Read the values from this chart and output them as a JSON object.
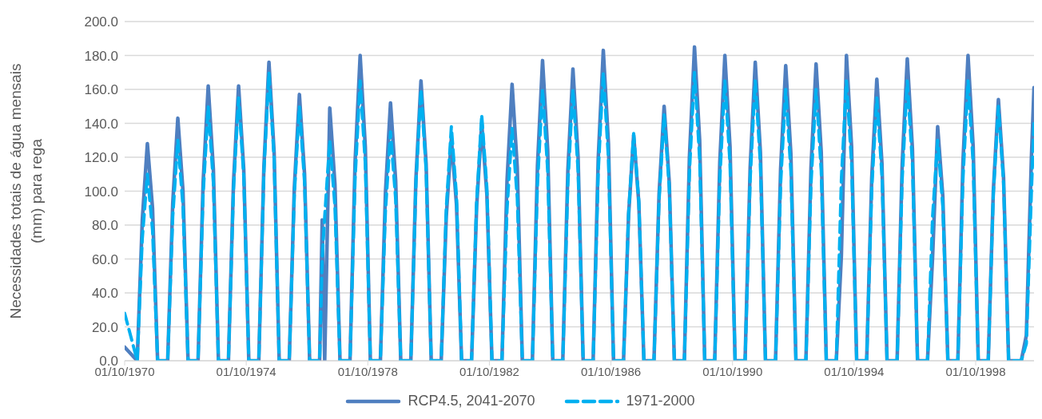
{
  "chart_data": {
    "type": "line",
    "ylabel": "Necessidades totais de água mensais (mm) para rega",
    "xlim": [
      "1970-10-01",
      "2000-09-01"
    ],
    "xticks": [
      {
        "value": "1970-10-01",
        "label": "01/10/1970"
      },
      {
        "value": "1974-10-01",
        "label": "01/10/1974"
      },
      {
        "value": "1978-10-01",
        "label": "01/10/1978"
      },
      {
        "value": "1982-10-01",
        "label": "01/10/1982"
      },
      {
        "value": "1986-10-01",
        "label": "01/10/1986"
      },
      {
        "value": "1990-10-01",
        "label": "01/10/1990"
      },
      {
        "value": "1994-10-01",
        "label": "01/10/1994"
      },
      {
        "value": "1998-10-01",
        "label": "01/10/1998"
      }
    ],
    "ylim": [
      0,
      200
    ],
    "yticks": [
      {
        "value": 0,
        "label": "0.0"
      },
      {
        "value": 20,
        "label": "20.0"
      },
      {
        "value": 40,
        "label": "40.0"
      },
      {
        "value": 60,
        "label": "60.0"
      },
      {
        "value": 80,
        "label": "80.0"
      },
      {
        "value": 100,
        "label": "100.0"
      },
      {
        "value": 120,
        "label": "120.0"
      },
      {
        "value": 140,
        "label": "140.0"
      },
      {
        "value": 160,
        "label": "160.0"
      },
      {
        "value": 180,
        "label": "180.0"
      },
      {
        "value": 200,
        "label": "200.0"
      }
    ],
    "grid": "y",
    "legend": "bottom",
    "marker": "none",
    "x": [
      "1970-10",
      "1971-03",
      "1971-05",
      "1971-07",
      "1971-09",
      "1971-11",
      "1972-03",
      "1972-05",
      "1972-07",
      "1972-09",
      "1972-11",
      "1973-03",
      "1973-05",
      "1973-07",
      "1973-09",
      "1973-11",
      "1974-03",
      "1974-05",
      "1974-07",
      "1974-09",
      "1974-11",
      "1975-03",
      "1975-05",
      "1975-07",
      "1975-09",
      "1975-11",
      "1976-03",
      "1976-05",
      "1976-07",
      "1976-09",
      "1976-11",
      "1977-03",
      "1977-04",
      "1977-05",
      "1977-07",
      "1977-09",
      "1977-11",
      "1978-03",
      "1978-05",
      "1978-07",
      "1978-09",
      "1978-11",
      "1979-03",
      "1979-05",
      "1979-07",
      "1979-09",
      "1979-11",
      "1980-03",
      "1980-05",
      "1980-07",
      "1980-09",
      "1980-11",
      "1981-03",
      "1981-05",
      "1981-07",
      "1981-09",
      "1981-11",
      "1982-03",
      "1982-05",
      "1982-07",
      "1982-09",
      "1982-11",
      "1983-03",
      "1983-05",
      "1983-07",
      "1983-09",
      "1983-11",
      "1984-03",
      "1984-05",
      "1984-07",
      "1984-09",
      "1984-11",
      "1985-03",
      "1985-05",
      "1985-07",
      "1985-09",
      "1985-11",
      "1986-03",
      "1986-05",
      "1986-07",
      "1986-09",
      "1986-11",
      "1987-03",
      "1987-05",
      "1987-07",
      "1987-09",
      "1987-11",
      "1988-03",
      "1988-05",
      "1988-07",
      "1988-09",
      "1988-11",
      "1989-03",
      "1989-05",
      "1989-07",
      "1989-09",
      "1989-11",
      "1990-03",
      "1990-05",
      "1990-07",
      "1990-09",
      "1990-11",
      "1991-03",
      "1991-05",
      "1991-07",
      "1991-09",
      "1991-11",
      "1992-03",
      "1992-05",
      "1992-07",
      "1992-09",
      "1992-11",
      "1993-03",
      "1993-05",
      "1993-07",
      "1993-09",
      "1993-11",
      "1994-03",
      "1994-05",
      "1994-07",
      "1994-09",
      "1994-11",
      "1995-03",
      "1995-05",
      "1995-07",
      "1995-09",
      "1995-11",
      "1996-03",
      "1996-05",
      "1996-07",
      "1996-09",
      "1996-11",
      "1997-03",
      "1997-05",
      "1997-07",
      "1997-09",
      "1997-11",
      "1998-03",
      "1998-05",
      "1998-07",
      "1998-09",
      "1998-11",
      "1999-03",
      "1999-05",
      "1999-07",
      "1999-09",
      "1999-11",
      "2000-04",
      "2000-06",
      "2000-08",
      "2000-09"
    ],
    "series": [
      {
        "name": "RCP4.5, 2041-2070",
        "color": "#4f7fc0",
        "line_style": "solid",
        "values": [
          8,
          0,
          83,
          128,
          90,
          0,
          0,
          93,
          143,
          100,
          0,
          0,
          105,
          162,
          113,
          0,
          0,
          105,
          162,
          113,
          0,
          0,
          114,
          176,
          123,
          0,
          0,
          102,
          157,
          110,
          0,
          0,
          83,
          0,
          149,
          104,
          0,
          0,
          117,
          180,
          126,
          0,
          0,
          99,
          152,
          106,
          0,
          0,
          107,
          165,
          116,
          0,
          0,
          85,
          131,
          92,
          0,
          0,
          91,
          140,
          98,
          0,
          0,
          106,
          163,
          114,
          0,
          0,
          115,
          177,
          124,
          0,
          0,
          112,
          172,
          120,
          0,
          0,
          119,
          183,
          128,
          0,
          0,
          86,
          133,
          93,
          0,
          0,
          98,
          150,
          105,
          0,
          0,
          120,
          185,
          130,
          0,
          0,
          117,
          180,
          126,
          0,
          0,
          114,
          176,
          123,
          0,
          0,
          113,
          174,
          122,
          0,
          0,
          114,
          175,
          123,
          0,
          0,
          62,
          180,
          126,
          0,
          0,
          108,
          166,
          116,
          0,
          0,
          116,
          178,
          125,
          0,
          0,
          61,
          138,
          97,
          0,
          0,
          117,
          180,
          126,
          0,
          0,
          100,
          154,
          108,
          0,
          0,
          15,
          120,
          161
        ]
      },
      {
        "name": "1971-2000",
        "color": "#00b0f0",
        "line_style": "dashed",
        "values": [
          28,
          0,
          72,
          110,
          77,
          0,
          0,
          85,
          130,
          91,
          0,
          0,
          98,
          150,
          105,
          0,
          0,
          101,
          155,
          109,
          0,
          0,
          111,
          170,
          119,
          0,
          0,
          98,
          150,
          105,
          0,
          0,
          60,
          85,
          130,
          91,
          0,
          0,
          107,
          165,
          116,
          0,
          0,
          88,
          135,
          95,
          0,
          0,
          104,
          160,
          112,
          0,
          0,
          90,
          138,
          97,
          0,
          0,
          94,
          145,
          102,
          0,
          0,
          89,
          137,
          96,
          0,
          0,
          104,
          160,
          112,
          0,
          0,
          104,
          160,
          112,
          0,
          0,
          111,
          170,
          119,
          0,
          0,
          87,
          134,
          94,
          0,
          0,
          94,
          145,
          102,
          0,
          0,
          111,
          170,
          119,
          0,
          0,
          107,
          165,
          116,
          0,
          0,
          107,
          165,
          116,
          0,
          0,
          104,
          160,
          112,
          0,
          0,
          104,
          160,
          112,
          0,
          0,
          107,
          165,
          116,
          0,
          0,
          101,
          155,
          109,
          0,
          0,
          107,
          165,
          116,
          0,
          0,
          85,
          130,
          91,
          0,
          0,
          107,
          165,
          116,
          0,
          0,
          98,
          150,
          105,
          0,
          0,
          10,
          100,
          140
        ]
      }
    ]
  }
}
